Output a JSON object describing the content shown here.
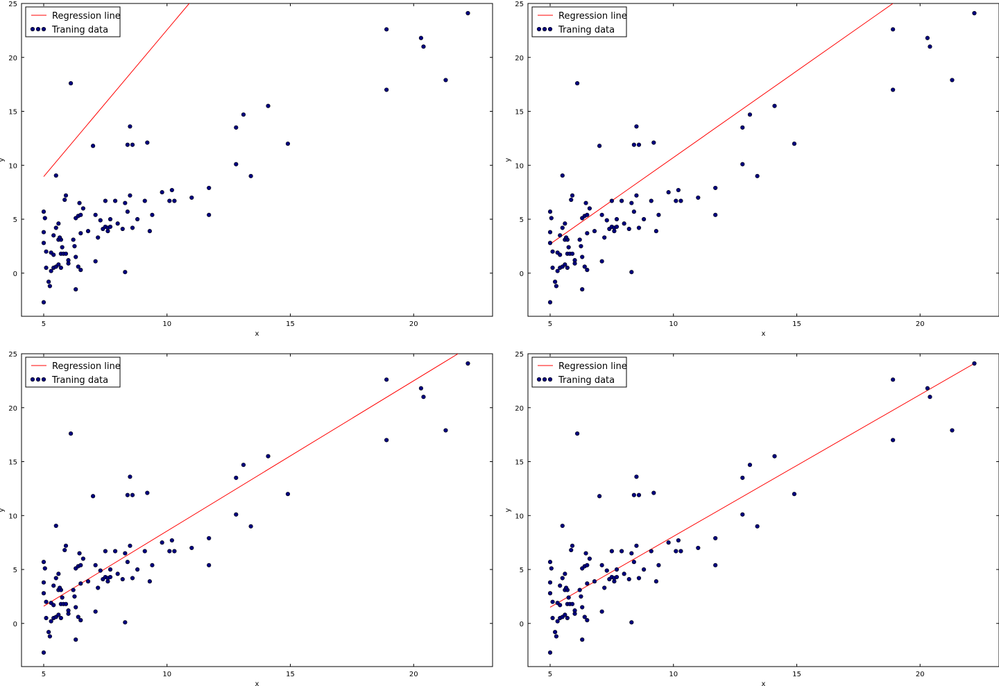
{
  "figure": {
    "layout": "2x2 grid of scatter plots with regression lines"
  },
  "colors": {
    "line": "#ff0000",
    "points": "#00007f",
    "point_edge": "#000000",
    "axes": "#000000"
  },
  "shared": {
    "points": [
      [
        5.0,
        5.7
      ],
      [
        5.05,
        5.1
      ],
      [
        5.0,
        3.8
      ],
      [
        5.0,
        2.8
      ],
      [
        5.1,
        2.0
      ],
      [
        5.0,
        -2.7
      ],
      [
        5.2,
        -0.8
      ],
      [
        5.25,
        -1.2
      ],
      [
        5.3,
        0.2
      ],
      [
        5.1,
        0.5
      ],
      [
        5.3,
        1.9
      ],
      [
        5.4,
        1.7
      ],
      [
        5.4,
        3.5
      ],
      [
        5.5,
        4.2
      ],
      [
        5.6,
        4.6
      ],
      [
        5.6,
        3.1
      ],
      [
        5.5,
        9.05
      ],
      [
        5.4,
        0.5
      ],
      [
        5.5,
        0.6
      ],
      [
        5.6,
        0.8
      ],
      [
        5.7,
        0.5
      ],
      [
        5.7,
        1.8
      ],
      [
        5.8,
        1.8
      ],
      [
        5.9,
        1.8
      ],
      [
        5.7,
        3.1
      ],
      [
        5.65,
        3.3
      ],
      [
        5.75,
        2.4
      ],
      [
        5.85,
        6.8
      ],
      [
        5.9,
        7.2
      ],
      [
        6.0,
        0.9
      ],
      [
        6.0,
        1.2
      ],
      [
        6.1,
        17.6
      ],
      [
        6.2,
        3.1
      ],
      [
        6.25,
        2.5
      ],
      [
        6.3,
        1.5
      ],
      [
        6.3,
        -1.5
      ],
      [
        6.4,
        0.6
      ],
      [
        6.5,
        0.3
      ],
      [
        6.3,
        5.1
      ],
      [
        6.4,
        5.3
      ],
      [
        6.5,
        5.4
      ],
      [
        6.45,
        6.5
      ],
      [
        6.6,
        6.0
      ],
      [
        6.5,
        3.7
      ],
      [
        6.8,
        3.9
      ],
      [
        7.0,
        11.8
      ],
      [
        7.1,
        5.4
      ],
      [
        7.1,
        1.1
      ],
      [
        7.2,
        3.3
      ],
      [
        7.3,
        4.9
      ],
      [
        7.4,
        4.1
      ],
      [
        7.5,
        4.3
      ],
      [
        7.5,
        6.7
      ],
      [
        7.6,
        3.9
      ],
      [
        7.6,
        4.2
      ],
      [
        7.7,
        4.3
      ],
      [
        7.7,
        5.0
      ],
      [
        7.9,
        6.7
      ],
      [
        8.0,
        4.6
      ],
      [
        8.2,
        4.1
      ],
      [
        8.3,
        6.5
      ],
      [
        8.3,
        0.1
      ],
      [
        8.4,
        5.7
      ],
      [
        8.4,
        11.9
      ],
      [
        8.5,
        7.2
      ],
      [
        8.6,
        4.2
      ],
      [
        8.5,
        13.6
      ],
      [
        8.6,
        11.9
      ],
      [
        8.8,
        5.0
      ],
      [
        9.1,
        6.7
      ],
      [
        9.2,
        12.1
      ],
      [
        9.3,
        3.9
      ],
      [
        9.4,
        5.4
      ],
      [
        9.8,
        7.5
      ],
      [
        10.1,
        6.7
      ],
      [
        10.3,
        6.7
      ],
      [
        10.2,
        7.7
      ],
      [
        11.0,
        7.0
      ],
      [
        11.7,
        7.9
      ],
      [
        11.7,
        5.4
      ],
      [
        12.8,
        13.5
      ],
      [
        12.8,
        10.1
      ],
      [
        13.1,
        14.7
      ],
      [
        13.4,
        9.0
      ],
      [
        14.1,
        15.5
      ],
      [
        14.9,
        12.0
      ],
      [
        18.9,
        22.6
      ],
      [
        18.9,
        17.0
      ],
      [
        20.3,
        21.8
      ],
      [
        20.4,
        21.0
      ],
      [
        21.3,
        17.9
      ],
      [
        22.2,
        24.1
      ]
    ],
    "xlabel": "x",
    "ylabel": "y",
    "xticks": [
      5,
      10,
      15,
      20
    ],
    "yticks": [
      0,
      5,
      10,
      15,
      20,
      25
    ],
    "xlim": [
      4.1,
      23.2
    ],
    "ylim": [
      -4,
      25
    ],
    "legend": {
      "line_label": "Regression line",
      "points_label": "Traning data",
      "position": "top-left"
    }
  },
  "chart_data": [
    {
      "type": "scatter",
      "title": "",
      "xlabel": "x",
      "ylabel": "y",
      "xlim": [
        4.1,
        23.2
      ],
      "ylim": [
        -4,
        25
      ],
      "regression_line": {
        "x": [
          5.0,
          10.9
        ],
        "y": [
          8.95,
          25.0
        ]
      },
      "legend": [
        "Regression line",
        "Traning data"
      ]
    },
    {
      "type": "scatter",
      "title": "",
      "xlabel": "x",
      "ylabel": "y",
      "xlim": [
        4.1,
        23.2
      ],
      "ylim": [
        -4,
        25
      ],
      "regression_line": {
        "x": [
          5.0,
          18.9
        ],
        "y": [
          2.7,
          25.0
        ]
      },
      "legend": [
        "Regression line",
        "Traning data"
      ]
    },
    {
      "type": "scatter",
      "title": "",
      "xlabel": "x",
      "ylabel": "y",
      "xlim": [
        4.1,
        23.2
      ],
      "ylim": [
        -4,
        25
      ],
      "regression_line": {
        "x": [
          5.0,
          21.8
        ],
        "y": [
          1.6,
          25.0
        ]
      },
      "legend": [
        "Regression line",
        "Traning data"
      ]
    },
    {
      "type": "scatter",
      "title": "",
      "xlabel": "x",
      "ylabel": "y",
      "xlim": [
        4.1,
        23.2
      ],
      "ylim": [
        -4,
        25
      ],
      "regression_line": {
        "x": [
          5.0,
          22.2
        ],
        "y": [
          1.5,
          24.1
        ]
      },
      "legend": [
        "Regression line",
        "Traning data"
      ]
    }
  ]
}
